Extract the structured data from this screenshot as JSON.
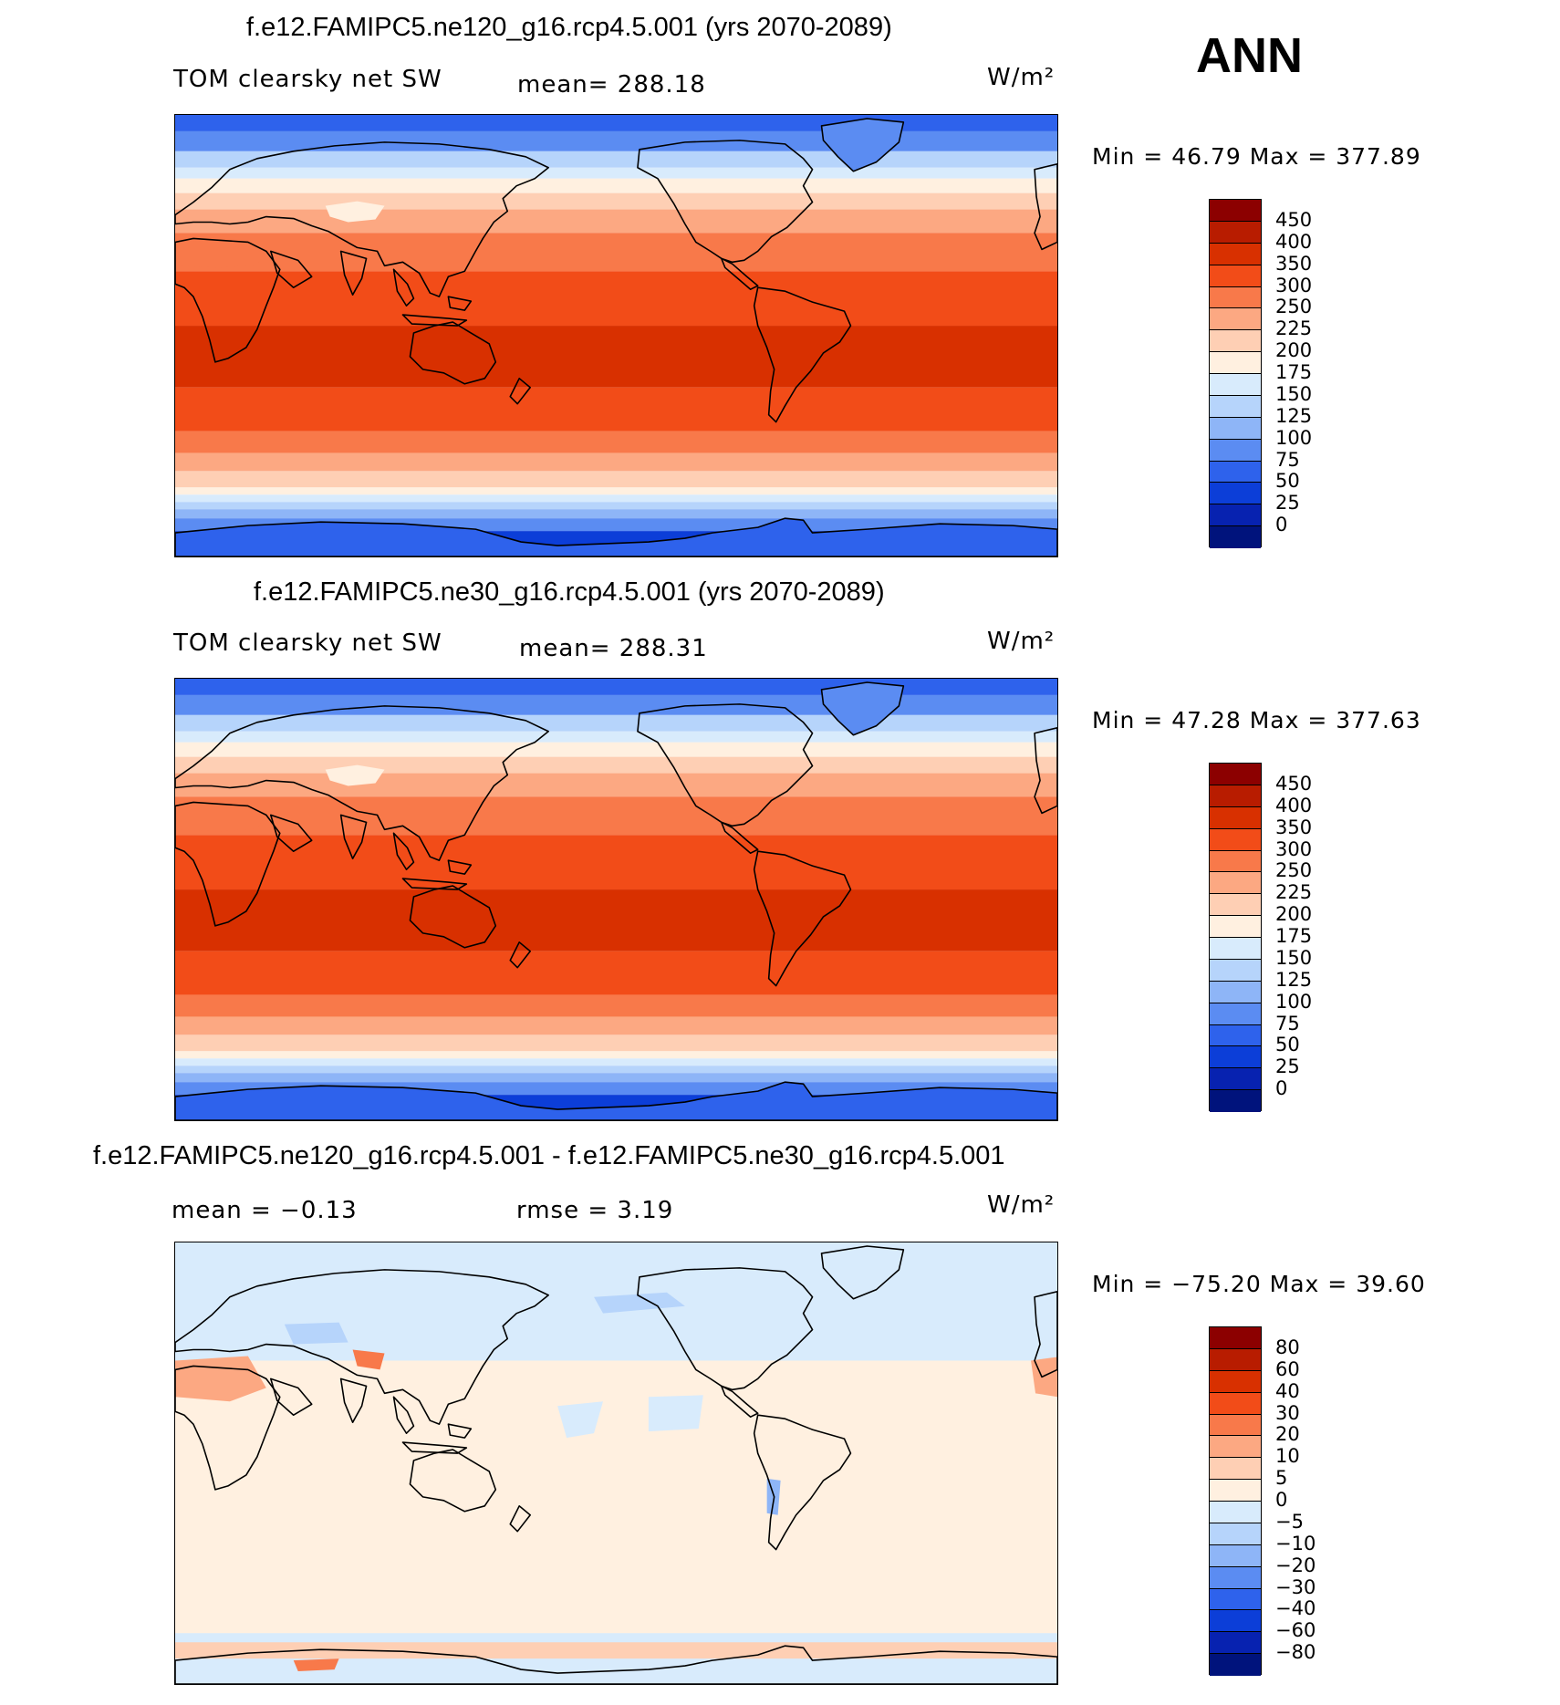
{
  "season": "ANN",
  "panels": [
    {
      "title": "f.e12.FAMIPC5.ne120_g16.rcp4.5.001 (yrs 2070-2089)",
      "left_label": "TOM clearsky net SW",
      "stat_label": "mean= 288.18",
      "units": "W/m²",
      "minmax": "Min =   46.79 Max = 377.89",
      "kind": "abs",
      "colorbar": {
        "levels": [
          "450",
          "400",
          "350",
          "300",
          "250",
          "225",
          "200",
          "175",
          "150",
          "125",
          "100",
          "75",
          "50",
          "25",
          "0"
        ],
        "colors": [
          "#8c0000",
          "#b81c00",
          "#d83000",
          "#f24c18",
          "#f8794a",
          "#fca882",
          "#fecfb4",
          "#fff0e0",
          "#d8ebfc",
          "#b6d4fb",
          "#8eb5f7",
          "#5b8cf2",
          "#2e62ec",
          "#0c3ed8",
          "#0722b0",
          "#00137c"
        ]
      }
    },
    {
      "title": "f.e12.FAMIPC5.ne30_g16.rcp4.5.001 (yrs 2070-2089)",
      "left_label": "TOM clearsky net SW",
      "stat_label": "mean= 288.31",
      "units": "W/m²",
      "minmax": "Min =   47.28 Max = 377.63",
      "kind": "abs",
      "colorbar": {
        "levels": [
          "450",
          "400",
          "350",
          "300",
          "250",
          "225",
          "200",
          "175",
          "150",
          "125",
          "100",
          "75",
          "50",
          "25",
          "0"
        ],
        "colors": [
          "#8c0000",
          "#b81c00",
          "#d83000",
          "#f24c18",
          "#f8794a",
          "#fca882",
          "#fecfb4",
          "#fff0e0",
          "#d8ebfc",
          "#b6d4fb",
          "#8eb5f7",
          "#5b8cf2",
          "#2e62ec",
          "#0c3ed8",
          "#0722b0",
          "#00137c"
        ]
      }
    },
    {
      "title": "f.e12.FAMIPC5.ne120_g16.rcp4.5.001 - f.e12.FAMIPC5.ne30_g16.rcp4.5.001",
      "left_label": "mean =   −0.13",
      "stat_label": "rmse =     3.19",
      "units": "W/m²",
      "minmax": "Min = −75.20 Max =   39.60",
      "kind": "diff",
      "colorbar": {
        "levels": [
          "80",
          "60",
          "40",
          "30",
          "20",
          "10",
          "5",
          "0",
          "−5",
          "−10",
          "−20",
          "−30",
          "−40",
          "−60",
          "−80"
        ],
        "colors": [
          "#8c0000",
          "#b81c00",
          "#d83000",
          "#f24c18",
          "#f8794a",
          "#fca882",
          "#fecfb4",
          "#fff0e0",
          "#d8ebfc",
          "#b6d4fb",
          "#8eb5f7",
          "#5b8cf2",
          "#2e62ec",
          "#0c3ed8",
          "#0722b0",
          "#00137c"
        ]
      }
    }
  ]
}
